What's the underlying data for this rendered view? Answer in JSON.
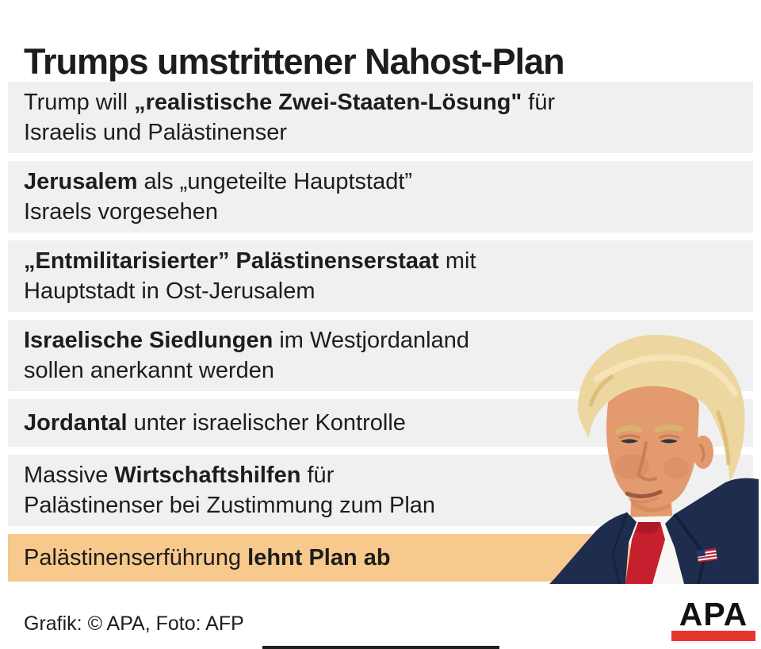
{
  "title": "Trumps umstrittener Nahost-Plan",
  "rows": [
    {
      "highlight": false,
      "lines": [
        [
          {
            "t": "Trump will ",
            "b": false
          },
          {
            "t": "„realistische Zwei-Staaten-Lösung\"",
            "b": true
          },
          {
            "t": " für",
            "b": false
          }
        ],
        [
          {
            "t": "Israelis und Palästinenser",
            "b": false
          }
        ]
      ]
    },
    {
      "highlight": false,
      "lines": [
        [
          {
            "t": "Jerusalem",
            "b": true
          },
          {
            "t": " als „ungeteilte Hauptstadt”",
            "b": false
          }
        ],
        [
          {
            "t": "Israels vorgesehen",
            "b": false
          }
        ]
      ]
    },
    {
      "highlight": false,
      "lines": [
        [
          {
            "t": "„Entmilitarisierter” Palästinenserstaat",
            "b": true
          },
          {
            "t": " mit",
            "b": false
          }
        ],
        [
          {
            "t": "Hauptstadt in Ost-Jerusalem",
            "b": false
          }
        ]
      ]
    },
    {
      "highlight": false,
      "lines": [
        [
          {
            "t": "Israelische Siedlungen",
            "b": true
          },
          {
            "t": " im Westjordanland",
            "b": false
          }
        ],
        [
          {
            "t": "sollen anerkannt werden",
            "b": false
          }
        ]
      ]
    },
    {
      "highlight": false,
      "lines": [
        [
          {
            "t": "Jordantal",
            "b": true
          },
          {
            "t": " unter israelischer Kontrolle",
            "b": false
          }
        ]
      ]
    },
    {
      "highlight": false,
      "lines": [
        [
          {
            "t": "Massive ",
            "b": false
          },
          {
            "t": "Wirtschaftshilfen",
            "b": true
          },
          {
            "t": " für",
            "b": false
          }
        ],
        [
          {
            "t": "Palästinenser bei Zustimmung zum Plan",
            "b": false
          }
        ]
      ]
    },
    {
      "highlight": true,
      "lines": [
        [
          {
            "t": "Palästinenserführung ",
            "b": false
          },
          {
            "t": "lehnt Plan ab",
            "b": true
          }
        ]
      ]
    }
  ],
  "footer": {
    "credit": "Grafik: © APA, Foto: AFP",
    "logo_text": "APA"
  },
  "photo": {
    "subject": "Donald Trump portrait cutout"
  },
  "colors": {
    "row_bg": "#f0f0f0",
    "highlight_bg": "#f7c98d",
    "logo_red": "#e8352b",
    "text": "#1d1d1b",
    "suit": "#1e2c4e",
    "tie": "#c6202e",
    "hair": "#edd7a0",
    "skin": "#e29a6e",
    "shirt": "#f8f7f4"
  }
}
